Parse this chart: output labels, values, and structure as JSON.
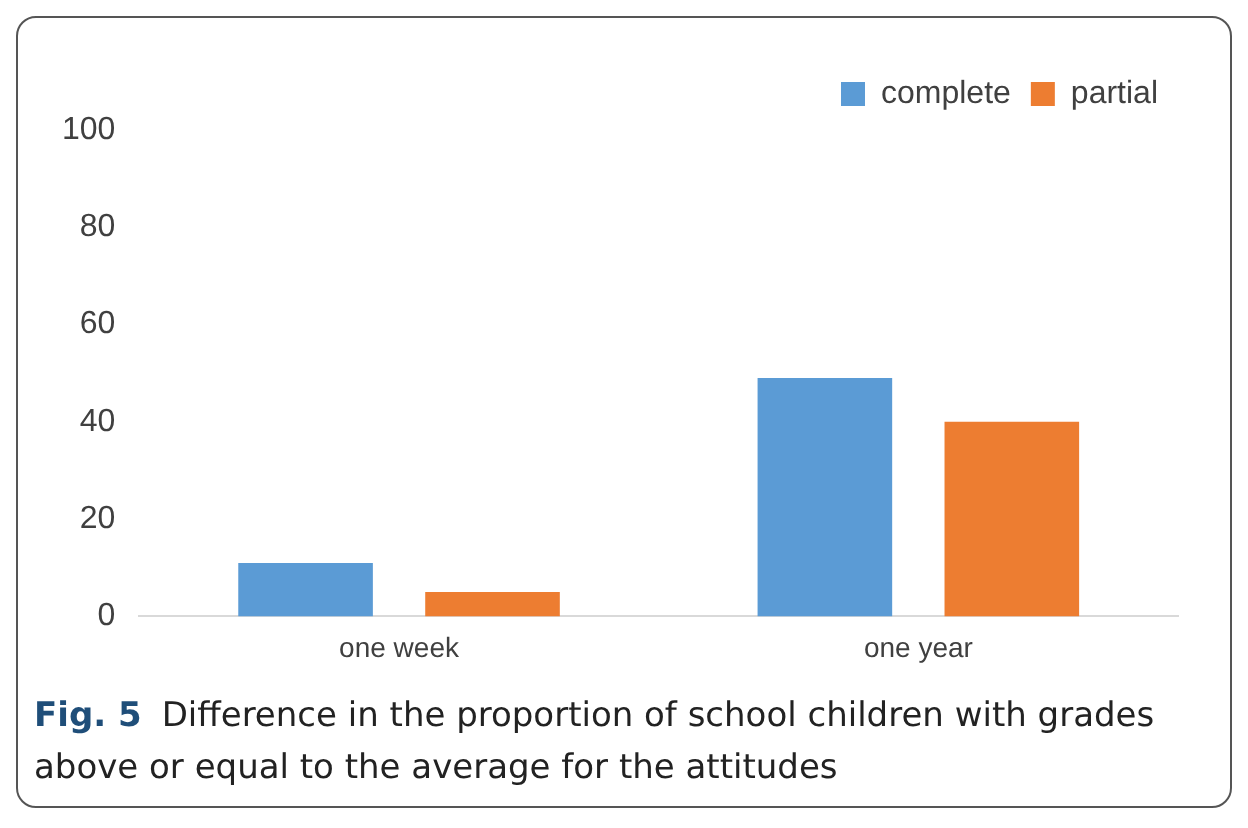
{
  "chart_data": {
    "type": "bar",
    "categories": [
      "one week",
      "one year"
    ],
    "series": [
      {
        "name": "complete",
        "color": "#5b9bd5",
        "values": [
          11,
          49
        ]
      },
      {
        "name": "partial",
        "color": "#ed7d31",
        "values": [
          5,
          40
        ]
      }
    ],
    "ylim": [
      0,
      100
    ],
    "yticks": [
      0,
      20,
      40,
      60,
      80,
      100
    ],
    "grid": false,
    "legend": "top right",
    "annotations": [
      "Fig. 5",
      "Difference in the proportion of school children with grades above or equal to the average for the attitudes"
    ]
  }
}
